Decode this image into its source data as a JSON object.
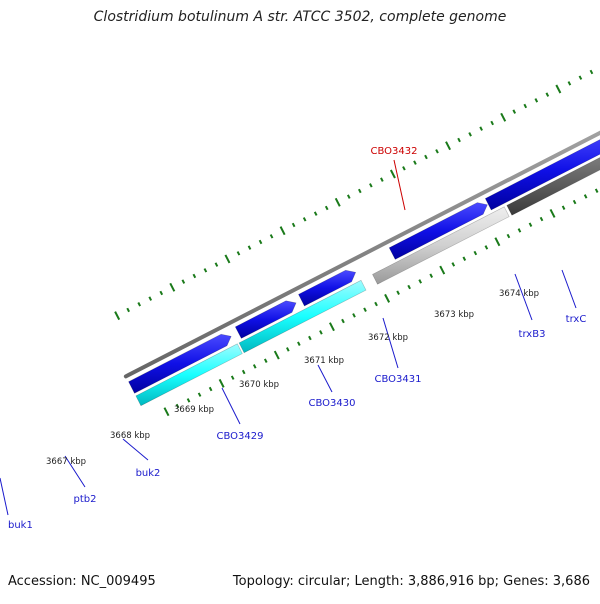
{
  "title": "Clostridium botulinum A str. ATCC 3502, complete genome",
  "footer": {
    "accession": "Accession: NC_009495",
    "stats": "Topology: circular; Length: 3,886,916 bp; Genes: 3,686"
  },
  "colors": {
    "background": "#ffffff",
    "backbone": "#8c8c8c",
    "tick": "#1a7a1a",
    "forward_gene": "#1010e6",
    "label_link": "#1a1acc",
    "highlight_label": "#cc0000",
    "cyan_feature": "#19ffff",
    "light_gray_feature": "#d0d0d0",
    "dark_gray_feature": "#6a6a6a",
    "olive_feature": "#b8b074",
    "green_feature": "#6b8e23",
    "red_feature": "#ff1010"
  },
  "kbp_labels": [
    "3667 kbp",
    "3668 kbp",
    "3669 kbp",
    "3670 kbp",
    "3671 kbp",
    "3672 kbp",
    "3673 kbp",
    "3674 kbp"
  ],
  "gene_labels": [
    {
      "text": "buk1",
      "color": "#1a1acc"
    },
    {
      "text": "ptb2",
      "color": "#1a1acc"
    },
    {
      "text": "buk2",
      "color": "#1a1acc"
    },
    {
      "text": "CBO3429",
      "color": "#1a1acc"
    },
    {
      "text": "CBO3430",
      "color": "#1a1acc"
    },
    {
      "text": "CBO3431",
      "color": "#1a1acc"
    },
    {
      "text": "trxB3",
      "color": "#1a1acc"
    },
    {
      "text": "trxC",
      "color": "#1a1acc"
    },
    {
      "text": "CBO3432",
      "color": "#cc0000"
    }
  ]
}
